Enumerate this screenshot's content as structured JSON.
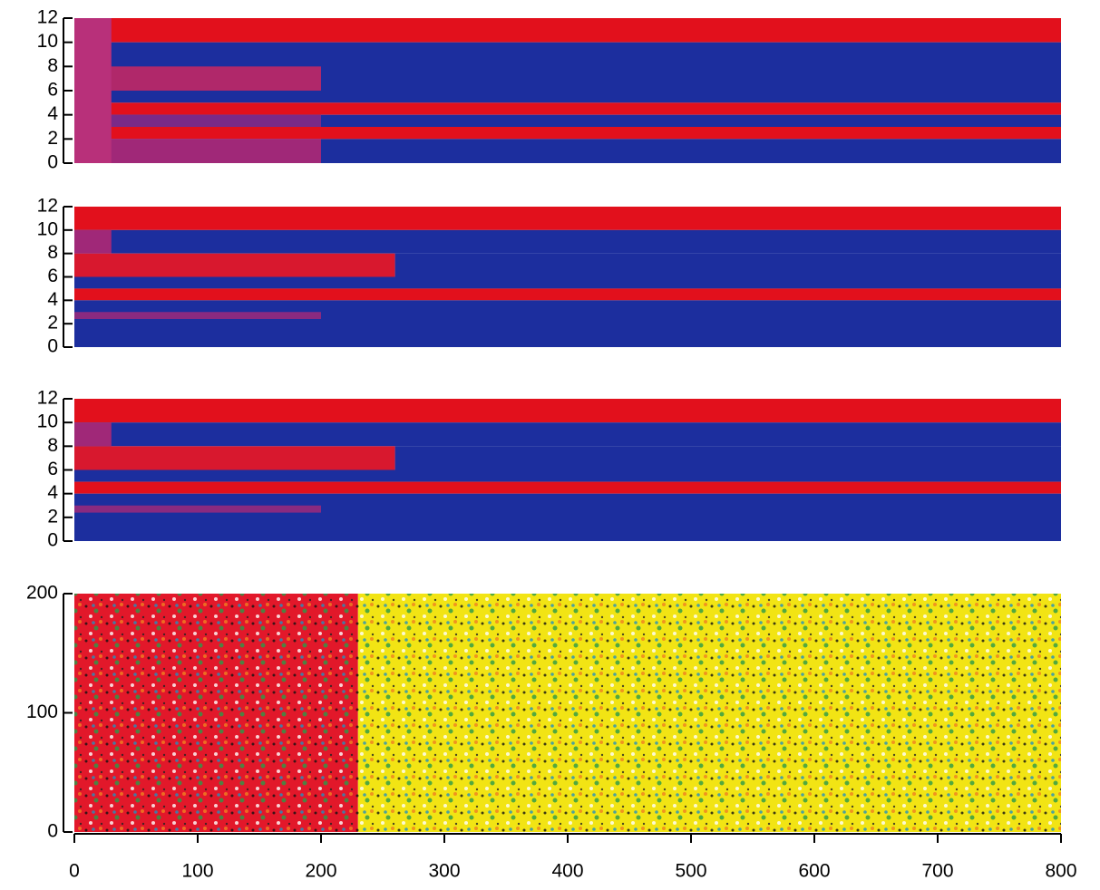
{
  "chart_data": [
    {
      "type": "heatmap",
      "xlim": [
        0,
        800
      ],
      "ylim": [
        0,
        12
      ],
      "yticks": [
        0,
        2,
        4,
        6,
        8,
        10,
        12
      ],
      "segments": [
        {
          "y": [
            10,
            12
          ],
          "x": [
            0,
            800
          ],
          "color": "#e2101c"
        },
        {
          "y": [
            5,
            10
          ],
          "x": [
            0,
            800
          ],
          "color": "#1c2e9e"
        },
        {
          "y": [
            4,
            5
          ],
          "x": [
            0,
            800
          ],
          "color": "#e2101c"
        },
        {
          "y": [
            3,
            4
          ],
          "x": [
            0,
            800
          ],
          "color": "#1c2e9e"
        },
        {
          "y": [
            2,
            3
          ],
          "x": [
            0,
            800
          ],
          "color": "#e2101c"
        },
        {
          "y": [
            0,
            2
          ],
          "x": [
            0,
            800
          ],
          "color": "#1c2e9e"
        },
        {
          "y": [
            6,
            8
          ],
          "x": [
            0,
            200
          ],
          "color": "#b0286a"
        },
        {
          "y": [
            3,
            4
          ],
          "x": [
            20,
            200
          ],
          "color": "#7a2a88"
        },
        {
          "y": [
            0,
            2
          ],
          "x": [
            0,
            200
          ],
          "color": "#a02878"
        },
        {
          "y": [
            0,
            12
          ],
          "x": [
            0,
            30
          ],
          "color": "#b8307a"
        }
      ]
    },
    {
      "type": "heatmap",
      "xlim": [
        0,
        800
      ],
      "ylim": [
        0,
        12
      ],
      "yticks": [
        0,
        2,
        4,
        6,
        8,
        10,
        12
      ],
      "segments": [
        {
          "y": [
            10,
            12
          ],
          "x": [
            0,
            800
          ],
          "color": "#e2101c"
        },
        {
          "y": [
            8,
            10
          ],
          "x": [
            0,
            800
          ],
          "color": "#1c2e9e"
        },
        {
          "y": [
            6,
            8
          ],
          "x": [
            0,
            260
          ],
          "color": "#d8182e"
        },
        {
          "y": [
            6,
            8
          ],
          "x": [
            260,
            800
          ],
          "color": "#1c2e9e"
        },
        {
          "y": [
            5,
            6
          ],
          "x": [
            0,
            800
          ],
          "color": "#1c2e9e"
        },
        {
          "y": [
            4,
            5
          ],
          "x": [
            0,
            800
          ],
          "color": "#e2101c"
        },
        {
          "y": [
            0,
            4
          ],
          "x": [
            0,
            800
          ],
          "color": "#1c2e9e"
        },
        {
          "y": [
            2.4,
            3
          ],
          "x": [
            0,
            200
          ],
          "color": "#8a2a80"
        },
        {
          "y": [
            8,
            10
          ],
          "x": [
            0,
            30
          ],
          "color": "#a02878"
        }
      ]
    },
    {
      "type": "heatmap",
      "xlim": [
        0,
        800
      ],
      "ylim": [
        0,
        12
      ],
      "yticks": [
        0,
        2,
        4,
        6,
        8,
        10,
        12
      ],
      "segments": [
        {
          "y": [
            10,
            12
          ],
          "x": [
            0,
            800
          ],
          "color": "#e2101c"
        },
        {
          "y": [
            8,
            10
          ],
          "x": [
            0,
            800
          ],
          "color": "#1c2e9e"
        },
        {
          "y": [
            6,
            8
          ],
          "x": [
            0,
            260
          ],
          "color": "#d8182e"
        },
        {
          "y": [
            6,
            8
          ],
          "x": [
            260,
            800
          ],
          "color": "#1c2e9e"
        },
        {
          "y": [
            5,
            6
          ],
          "x": [
            0,
            800
          ],
          "color": "#1c2e9e"
        },
        {
          "y": [
            4,
            5
          ],
          "x": [
            0,
            800
          ],
          "color": "#e2101c"
        },
        {
          "y": [
            0,
            4
          ],
          "x": [
            0,
            800
          ],
          "color": "#1c2e9e"
        },
        {
          "y": [
            2.4,
            3
          ],
          "x": [
            0,
            200
          ],
          "color": "#8a2a80"
        },
        {
          "y": [
            8,
            10
          ],
          "x": [
            0,
            30
          ],
          "color": "#a02878"
        }
      ]
    },
    {
      "type": "heatmap",
      "xlim": [
        0,
        800
      ],
      "ylim": [
        0,
        200
      ],
      "yticks": [
        0,
        100,
        200
      ],
      "xticks": [
        0,
        100,
        200,
        300,
        400,
        500,
        600,
        700,
        800
      ],
      "segments": [
        {
          "y": [
            0,
            200
          ],
          "x": [
            0,
            230
          ],
          "color": "#e2182a"
        },
        {
          "y": [
            0,
            200
          ],
          "x": [
            230,
            800
          ],
          "color": "#f2e414"
        }
      ]
    }
  ]
}
